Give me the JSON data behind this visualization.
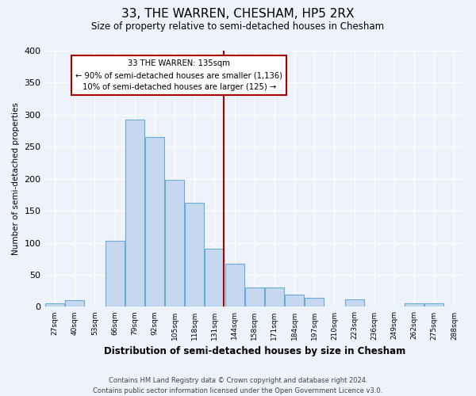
{
  "title": "33, THE WARREN, CHESHAM, HP5 2RX",
  "subtitle": "Size of property relative to semi-detached houses in Chesham",
  "xlabel": "Distribution of semi-detached houses by size in Chesham",
  "ylabel": "Number of semi-detached properties",
  "footer_line1": "Contains HM Land Registry data © Crown copyright and database right 2024.",
  "footer_line2": "Contains public sector information licensed under the Open Government Licence v3.0.",
  "bin_labels": [
    "27sqm",
    "40sqm",
    "53sqm",
    "66sqm",
    "79sqm",
    "92sqm",
    "105sqm",
    "118sqm",
    "131sqm",
    "144sqm",
    "158sqm",
    "171sqm",
    "184sqm",
    "197sqm",
    "210sqm",
    "223sqm",
    "236sqm",
    "249sqm",
    "262sqm",
    "275sqm",
    "288sqm"
  ],
  "bar_heights": [
    6,
    11,
    0,
    103,
    293,
    265,
    199,
    163,
    91,
    67,
    30,
    30,
    19,
    14,
    0,
    12,
    0,
    0,
    6,
    6,
    0
  ],
  "bar_color": "#c5d8f0",
  "bar_edge_color": "#6aaad4",
  "vline_color": "#aa0000",
  "annotation_box_edge_color": "#aa0000",
  "annotation_label": "33 THE WARREN: 135sqm",
  "annotation_line2": "← 90% of semi-detached houses are smaller (1,136)",
  "annotation_line3": "10% of semi-detached houses are larger (125) →",
  "ylim": [
    0,
    400
  ],
  "yticks": [
    0,
    50,
    100,
    150,
    200,
    250,
    300,
    350,
    400
  ],
  "background_color": "#eef2fa",
  "grid_color": "#ffffff"
}
